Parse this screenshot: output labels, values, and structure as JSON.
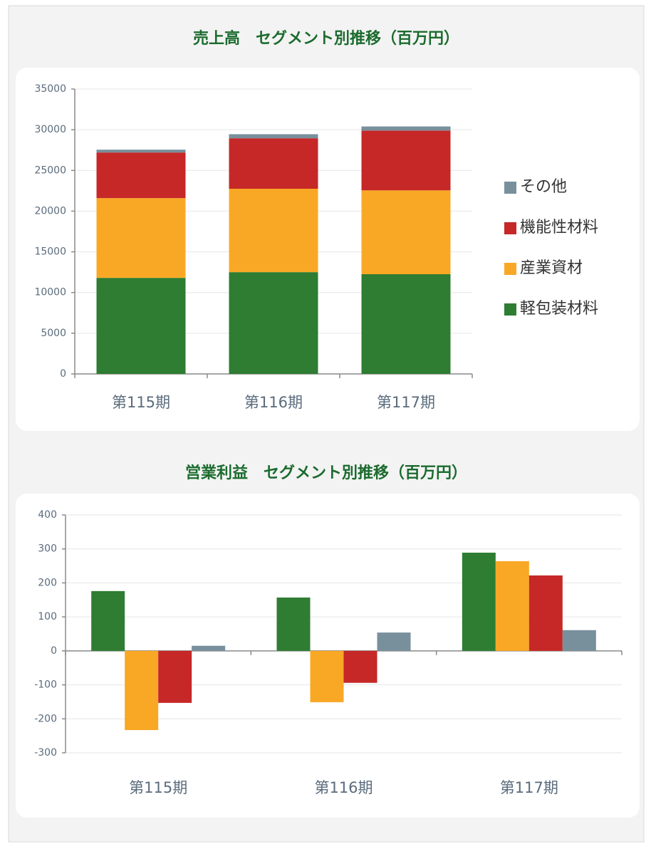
{
  "chart_data": [
    {
      "type": "bar",
      "stacked": true,
      "title": "売上高　セグメント別推移（百万円）",
      "categories": [
        "第115期",
        "第116期",
        "第117期"
      ],
      "series": [
        {
          "name": "軽包装材料",
          "color": "#2e7d32",
          "values": [
            11800,
            12500,
            12250
          ]
        },
        {
          "name": "産業資材",
          "color": "#f9a825",
          "values": [
            9800,
            10250,
            10300
          ]
        },
        {
          "name": "機能性材料",
          "color": "#c62828",
          "values": [
            5600,
            6200,
            7350
          ]
        },
        {
          "name": "その他",
          "color": "#78909c",
          "values": [
            350,
            500,
            500
          ]
        }
      ],
      "ylim": [
        0,
        35000
      ],
      "yticks": [
        0,
        5000,
        10000,
        15000,
        20000,
        25000,
        30000,
        35000
      ],
      "grid": true,
      "legend": "right"
    },
    {
      "type": "bar",
      "stacked": false,
      "title": "営業利益　セグメント別推移（百万円）",
      "categories": [
        "第115期",
        "第116期",
        "第117期"
      ],
      "series": [
        {
          "color": "#2e7d32",
          "values": [
            176,
            157,
            289
          ]
        },
        {
          "color": "#f9a825",
          "values": [
            -233,
            -151,
            264
          ]
        },
        {
          "color": "#c62828",
          "values": [
            -153,
            -94,
            222
          ]
        },
        {
          "color": "#78909c",
          "values": [
            15,
            54,
            61
          ]
        }
      ],
      "ylim": [
        -300,
        400
      ],
      "yticks": [
        -300,
        -200,
        -100,
        0,
        100,
        200,
        300,
        400
      ],
      "grid": true
    }
  ]
}
